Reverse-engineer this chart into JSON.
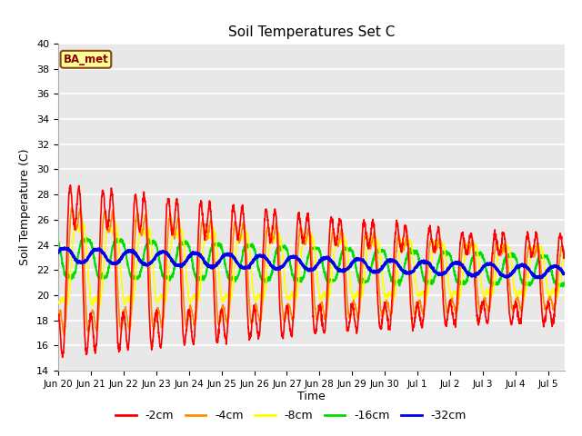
{
  "title": "Soil Temperatures Set C",
  "xlabel": "Time",
  "ylabel": "Soil Temperature (C)",
  "ylim": [
    14,
    40
  ],
  "yticks": [
    14,
    16,
    18,
    20,
    22,
    24,
    26,
    28,
    30,
    32,
    34,
    36,
    38,
    40
  ],
  "legend_label": "BA_met",
  "line_colors": {
    "-2cm": "#FF0000",
    "-4cm": "#FF8C00",
    "-8cm": "#FFFF00",
    "-16cm": "#00DD00",
    "-32cm": "#0000EE"
  },
  "line_widths": {
    "-2cm": 1.2,
    "-4cm": 1.2,
    "-8cm": 1.2,
    "-16cm": 1.5,
    "-32cm": 2.0
  },
  "plot_bg_color": "#E8E8E8",
  "annotation_box_color": "#FFFF99",
  "annotation_box_edge": "#8B4513",
  "annotation_text_color": "#8B0000",
  "num_days": 15.5,
  "points_per_day": 144,
  "x_tick_positions": [
    0,
    1,
    2,
    3,
    4,
    5,
    6,
    7,
    8,
    9,
    10,
    11,
    12,
    13,
    14,
    15
  ],
  "x_tick_labels": [
    "Jun 20",
    "Jun 21",
    "Jun 22",
    "Jun 23",
    "Jun 24",
    "Jun 25",
    "Jun 26",
    "Jun 27",
    "Jun 28",
    "Jun 29",
    "Jun 30",
    "Jul 1",
    "Jul 2",
    "Jul 3",
    "Jul 4",
    "Jul 5"
  ]
}
